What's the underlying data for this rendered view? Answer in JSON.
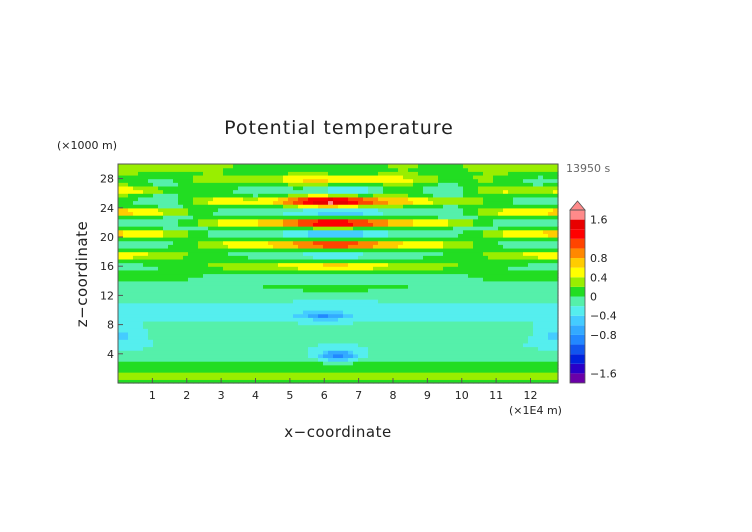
{
  "chart_data": {
    "type": "heatmap",
    "title": "Potential temperature",
    "xlabel": "x−coordinate",
    "ylabel": "z−coordinate",
    "x_unit": "(×1E4 m)",
    "y_unit": "(×1000 m)",
    "time_label": "13950 s",
    "xlim": [
      0,
      12.8
    ],
    "ylim": [
      0,
      30
    ],
    "x_ticks": [
      1,
      2,
      3,
      4,
      5,
      6,
      7,
      8,
      9,
      10,
      11,
      12
    ],
    "y_ticks": [
      4,
      8,
      12,
      16,
      20,
      24,
      28
    ],
    "y_tick_labels": [
      "4",
      "8",
      "12",
      "16",
      "20",
      "24",
      "28"
    ],
    "colorbar": {
      "levels": [
        -1.8,
        -1.6,
        -1.4,
        -1.2,
        -1.0,
        -0.8,
        -0.6,
        -0.4,
        -0.2,
        0,
        0.2,
        0.4,
        0.6,
        0.8,
        1.0,
        1.2,
        1.4,
        1.6,
        1.8
      ],
      "colors": [
        "#6a00a8",
        "#2a00c8",
        "#0022dd",
        "#1155ee",
        "#2288ff",
        "#33aaff",
        "#44ccff",
        "#55eeee",
        "#55f0aa",
        "#22dd22",
        "#99ee00",
        "#ffff00",
        "#ffcc00",
        "#ff8800",
        "#ff4400",
        "#ff0000",
        "#e80000",
        "#ff8a8a"
      ],
      "labels": [
        "1.6",
        "0.8",
        "0.4",
        "0",
        "−0.4",
        "−0.8",
        "−1.6"
      ],
      "label_values": [
        1.6,
        0.8,
        0.4,
        0,
        -0.4,
        -0.8,
        -1.6
      ]
    }
  }
}
